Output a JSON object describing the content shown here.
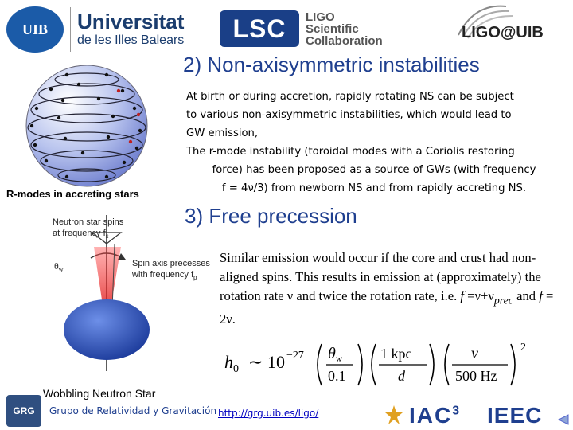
{
  "header": {
    "uib": {
      "emblem": "UIB",
      "name": "Universitat",
      "subtitle": "de les Illes Balears"
    },
    "lsc": {
      "box": "LSC",
      "line1": "LIGO",
      "line2": "Scientific",
      "line3": "Collaboration"
    },
    "ligo_uib": "LIGO@UIB"
  },
  "section1": {
    "title": "2) Non-axisymmetric instabilities",
    "lines": [
      "At birth or during accretion, rapidly rotating NS can be subject",
      "to various non-axisymmetric instabilities, which would lead to",
      "GW emission,",
      "The r-mode instability (toroidal modes with a Coriolis restoring",
      "force)  has been proposed as a source of GWs (with frequency",
      "f = 4ν/3) from newborn NS and from rapidly accreting NS."
    ],
    "figure_caption": "R-modes in accreting stars"
  },
  "section2": {
    "title": "3) Free precession",
    "text_part1": "Similar emission would occur if the core and crust had non-aligned spins. This results in emission at (approximately) the rotation rate ν and twice the rotation rate, i.e. ",
    "f_label": "f",
    "eq1": " =ν+ν",
    "eq1_sub": "prec",
    "and": " and ",
    "f_label2": "f",
    "eq2": " = 2ν.",
    "figure": {
      "label_spin": "Neutron star spins",
      "label_spin2": "at frequency f",
      "label_spin_sub": "s",
      "label_theta": "θ",
      "label_theta_sub": "w",
      "label_axis": "Spin axis precesses",
      "label_axis2": "with frequency f",
      "label_axis_sub": "p"
    },
    "figure_caption": "Wobbling Neutron Star"
  },
  "formula": {
    "lhs": "h",
    "lhs_sub": "0",
    "sim": "∼",
    "base": "10",
    "exp": "−27",
    "theta": "θ",
    "theta_sub": "w",
    "theta_den": "0.1",
    "kpc": "1 kpc",
    "d": "d",
    "sq": "2",
    "nu": "ν",
    "hz": "500 Hz"
  },
  "footer": {
    "grg_badge": "GRG",
    "grg_name": "Grupo de Relatividad y Gravitación",
    "link": "http://grg.uib.es/ligo/",
    "iac": "IAC",
    "iac_num": "3",
    "ieec": "IEEC"
  },
  "colors": {
    "title": "#1f3f8f",
    "link": "#0000c0",
    "cone": "#e02020",
    "star": "#2a4fb8"
  }
}
